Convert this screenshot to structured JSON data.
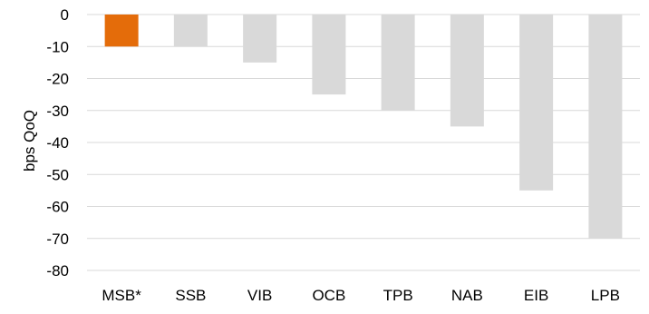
{
  "chart_data": {
    "type": "bar",
    "title": "",
    "xlabel": "",
    "ylabel": "bps QoQ",
    "categories": [
      "MSB*",
      "SSB",
      "VIB",
      "OCB",
      "TPB",
      "NAB",
      "EIB",
      "LPB"
    ],
    "values": [
      -10,
      -10,
      -15,
      -25,
      -30,
      -35,
      -55,
      -70
    ],
    "ylim": [
      -80,
      0
    ],
    "yticks": [
      0,
      -10,
      -20,
      -30,
      -40,
      -50,
      -60,
      -70,
      -80
    ],
    "grid": true,
    "legend": "none",
    "colors": {
      "highlight": "#E46C0A",
      "default": "#D9D9D9",
      "gridline": "#D9D9D9"
    },
    "highlight_index": 0
  }
}
